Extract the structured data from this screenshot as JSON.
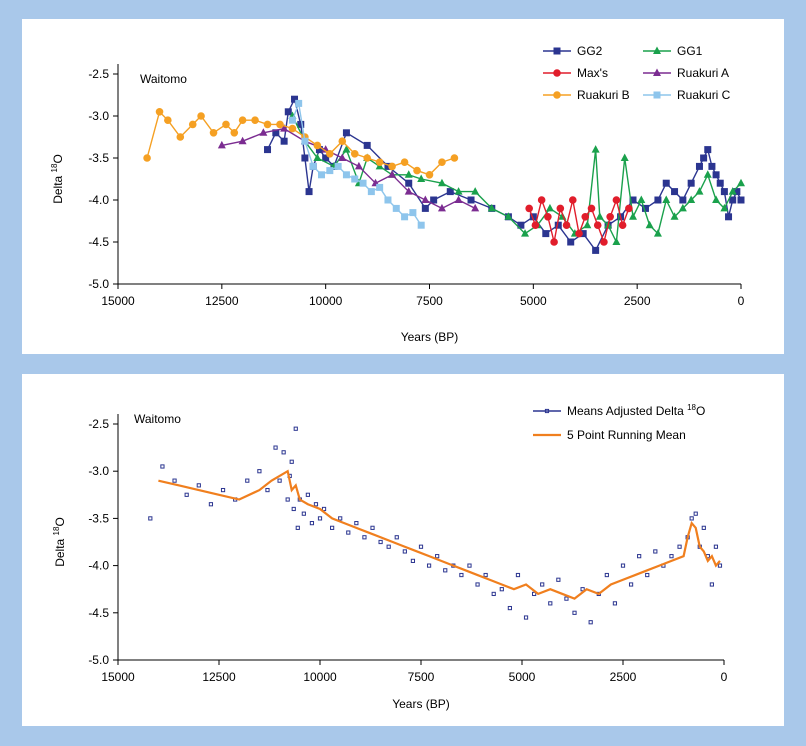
{
  "chart_data": [
    {
      "type": "line",
      "site_label": "Waitomo",
      "xlabel": "Years (BP)",
      "ylabel_main": "Delta ",
      "ylabel_sup": "18",
      "ylabel_tail": "O",
      "xlim": [
        15000,
        0
      ],
      "ylim": [
        -5.0,
        -2.5
      ],
      "xticks": [
        15000,
        12500,
        10000,
        7500,
        5000,
        2500,
        0
      ],
      "xtick_labels": [
        "15000",
        "12500",
        "10000",
        "7500",
        "5000",
        "2500",
        "0"
      ],
      "yticks": [
        -2.5,
        -3.0,
        -3.5,
        -4.0,
        -4.5,
        -5.0
      ],
      "ytick_labels": [
        "-2.5",
        "-3.0",
        "-3.5",
        "-4.0",
        "-4.5",
        "-5.0"
      ],
      "grid": false,
      "legend_position": "top-right",
      "series": [
        {
          "name": "GG2",
          "color": "#2b3590",
          "marker": "square",
          "x": [
            11400,
            11200,
            11000,
            10900,
            10750,
            10600,
            10500,
            10400,
            10300,
            10150,
            10000,
            9800,
            9500,
            9000,
            8500,
            8000,
            7600,
            7400,
            7000,
            6500,
            6000,
            5600,
            5300,
            5000,
            4700,
            4400,
            4100,
            3800,
            3500,
            3200,
            2900,
            2600,
            2300,
            2000,
            1800,
            1600,
            1400,
            1200,
            1000,
            900,
            800,
            700,
            600,
            500,
            400,
            300,
            200,
            100,
            0
          ],
          "y": [
            -3.4,
            -3.2,
            -3.3,
            -2.95,
            -2.8,
            -3.1,
            -3.5,
            -3.9,
            -3.6,
            -3.4,
            -3.5,
            -3.6,
            -3.2,
            -3.35,
            -3.6,
            -3.8,
            -4.1,
            -4.0,
            -3.9,
            -4.0,
            -4.1,
            -4.2,
            -4.3,
            -4.2,
            -4.4,
            -4.3,
            -4.5,
            -4.4,
            -4.6,
            -4.3,
            -4.2,
            -4.0,
            -4.1,
            -4.0,
            -3.8,
            -3.9,
            -4.0,
            -3.8,
            -3.6,
            -3.5,
            -3.4,
            -3.6,
            -3.7,
            -3.8,
            -3.9,
            -4.2,
            -4.0,
            -3.9,
            -4.0
          ]
        },
        {
          "name": "GG1",
          "color": "#1aa14c",
          "marker": "triangle",
          "x": [
            10800,
            10500,
            10200,
            9800,
            9500,
            9200,
            9000,
            8700,
            8400,
            8000,
            7700,
            7200,
            6800,
            6400,
            6000,
            5600,
            5200,
            4900,
            4600,
            4300,
            4000,
            3700,
            3500,
            3400,
            3200,
            3000,
            2800,
            2600,
            2400,
            2200,
            2000,
            1800,
            1600,
            1400,
            1200,
            1000,
            800,
            600,
            400,
            200,
            0
          ],
          "y": [
            -3.0,
            -3.3,
            -3.5,
            -3.6,
            -3.4,
            -3.8,
            -3.5,
            -3.6,
            -3.7,
            -3.7,
            -3.75,
            -3.8,
            -3.9,
            -3.9,
            -4.1,
            -4.2,
            -4.4,
            -4.3,
            -4.1,
            -4.2,
            -4.4,
            -4.3,
            -3.4,
            -4.2,
            -4.3,
            -4.5,
            -3.5,
            -4.2,
            -4.0,
            -4.3,
            -4.4,
            -4.0,
            -4.2,
            -4.1,
            -4.0,
            -3.9,
            -3.7,
            -4.0,
            -4.1,
            -3.9,
            -3.8
          ]
        },
        {
          "name": "Max's",
          "color": "#e11d2b",
          "marker": "circle",
          "x": [
            5100,
            4950,
            4800,
            4650,
            4500,
            4350,
            4200,
            4050,
            3900,
            3750,
            3600,
            3450,
            3300,
            3150,
            3000,
            2850,
            2700
          ],
          "y": [
            -4.1,
            -4.3,
            -4.0,
            -4.2,
            -4.5,
            -4.1,
            -4.3,
            -4.0,
            -4.4,
            -4.2,
            -4.1,
            -4.3,
            -4.5,
            -4.2,
            -4.0,
            -4.3,
            -4.1
          ]
        },
        {
          "name": "Ruakuri A",
          "color": "#7b2c91",
          "marker": "triangle",
          "x": [
            12500,
            12000,
            11500,
            11000,
            10500,
            10000,
            9600,
            9200,
            8800,
            8400,
            8000,
            7600,
            7200,
            6800,
            6400
          ],
          "y": [
            -3.35,
            -3.3,
            -3.2,
            -3.15,
            -3.3,
            -3.4,
            -3.5,
            -3.6,
            -3.8,
            -3.7,
            -3.9,
            -4.0,
            -4.1,
            -4.0,
            -4.1
          ]
        },
        {
          "name": "Ruakuri B",
          "color": "#f5a023",
          "marker": "circle",
          "x": [
            14300,
            14000,
            13800,
            13500,
            13200,
            13000,
            12700,
            12400,
            12200,
            12000,
            11700,
            11400,
            11100,
            10800,
            10500,
            10200,
            9900,
            9600,
            9300,
            9000,
            8700,
            8400,
            8100,
            7800,
            7500,
            7200,
            6900
          ],
          "y": [
            -3.5,
            -2.95,
            -3.05,
            -3.25,
            -3.1,
            -3.0,
            -3.2,
            -3.1,
            -3.2,
            -3.05,
            -3.05,
            -3.1,
            -3.1,
            -3.15,
            -3.25,
            -3.35,
            -3.45,
            -3.3,
            -3.45,
            -3.5,
            -3.55,
            -3.6,
            -3.55,
            -3.65,
            -3.7,
            -3.55,
            -3.5
          ]
        },
        {
          "name": "Ruakuri C",
          "color": "#8ec5ec",
          "marker": "square",
          "x": [
            10800,
            10650,
            10500,
            10300,
            10100,
            9900,
            9700,
            9500,
            9300,
            9100,
            8900,
            8700,
            8500,
            8300,
            8100,
            7900,
            7700
          ],
          "y": [
            -3.05,
            -2.85,
            -3.3,
            -3.6,
            -3.7,
            -3.65,
            -3.6,
            -3.7,
            -3.75,
            -3.8,
            -3.9,
            -3.85,
            -4.0,
            -4.1,
            -4.2,
            -4.15,
            -4.3
          ]
        }
      ]
    },
    {
      "type": "scatter",
      "site_label": "Waitomo",
      "xlabel": "Years (BP)",
      "ylabel_main": "Delta ",
      "ylabel_sup": "18",
      "ylabel_tail": "O",
      "xlim": [
        15000,
        0
      ],
      "ylim": [
        -5.0,
        -2.5
      ],
      "xticks": [
        15000,
        12500,
        10000,
        7500,
        5000,
        2500,
        0
      ],
      "xtick_labels": [
        "15000",
        "12500",
        "10000",
        "7500",
        "5000",
        "2500",
        "0"
      ],
      "yticks": [
        -2.5,
        -3.0,
        -3.5,
        -4.0,
        -4.5,
        -5.0
      ],
      "ytick_labels": [
        "-2.5",
        "-3.0",
        "-3.5",
        "-4.0",
        "-4.5",
        "-5.0"
      ],
      "grid": false,
      "legend_position": "top-right",
      "series": [
        {
          "name": "Means Adjusted Delta ",
          "name_sup": "18",
          "name_tail": "O",
          "color": "#2b3590",
          "marker": "square-small",
          "x": [
            14200,
            13900,
            13600,
            13300,
            13000,
            12700,
            12400,
            12100,
            11800,
            11500,
            11300,
            11100,
            11000,
            10900,
            10800,
            10750,
            10700,
            10650,
            10600,
            10550,
            10500,
            10400,
            10300,
            10200,
            10100,
            10000,
            9900,
            9700,
            9500,
            9300,
            9100,
            8900,
            8700,
            8500,
            8300,
            8100,
            7900,
            7700,
            7500,
            7300,
            7100,
            6900,
            6700,
            6500,
            6300,
            6100,
            5900,
            5700,
            5500,
            5300,
            5100,
            4900,
            4700,
            4500,
            4300,
            4100,
            3900,
            3700,
            3500,
            3300,
            3100,
            2900,
            2700,
            2500,
            2300,
            2100,
            1900,
            1700,
            1500,
            1300,
            1100,
            900,
            800,
            700,
            600,
            500,
            400,
            300,
            200,
            100
          ],
          "y": [
            -3.5,
            -2.95,
            -3.1,
            -3.25,
            -3.15,
            -3.35,
            -3.2,
            -3.3,
            -3.1,
            -3.0,
            -3.2,
            -2.75,
            -3.1,
            -2.8,
            -3.3,
            -3.05,
            -2.9,
            -3.4,
            -2.55,
            -3.6,
            -3.3,
            -3.45,
            -3.25,
            -3.55,
            -3.35,
            -3.5,
            -3.4,
            -3.6,
            -3.5,
            -3.65,
            -3.55,
            -3.7,
            -3.6,
            -3.75,
            -3.8,
            -3.7,
            -3.85,
            -3.95,
            -3.8,
            -4.0,
            -3.9,
            -4.05,
            -4.0,
            -4.1,
            -4.0,
            -4.2,
            -4.1,
            -4.3,
            -4.25,
            -4.45,
            -4.1,
            -4.55,
            -4.3,
            -4.2,
            -4.4,
            -4.15,
            -4.35,
            -4.5,
            -4.25,
            -4.6,
            -4.3,
            -4.1,
            -4.4,
            -4.0,
            -4.2,
            -3.9,
            -4.1,
            -3.85,
            -4.0,
            -3.9,
            -3.8,
            -3.7,
            -3.5,
            -3.45,
            -3.8,
            -3.6,
            -3.9,
            -4.2,
            -3.8,
            -4.0
          ]
        },
        {
          "name": "5 Point Running Mean",
          "color": "#f07f1e",
          "marker": "none",
          "x": [
            14000,
            13500,
            13000,
            12500,
            12000,
            11500,
            11200,
            11000,
            10800,
            10700,
            10600,
            10500,
            10300,
            10000,
            9700,
            9400,
            9100,
            8800,
            8500,
            8200,
            7900,
            7600,
            7300,
            7000,
            6700,
            6400,
            6100,
            5800,
            5500,
            5200,
            4900,
            4600,
            4300,
            4000,
            3700,
            3400,
            3100,
            2800,
            2500,
            2200,
            1900,
            1600,
            1300,
            1000,
            900,
            800,
            700,
            600,
            500,
            400,
            300,
            200,
            100
          ],
          "y": [
            -3.1,
            -3.15,
            -3.2,
            -3.25,
            -3.3,
            -3.2,
            -3.1,
            -3.05,
            -3.0,
            -3.2,
            -3.15,
            -3.3,
            -3.35,
            -3.4,
            -3.5,
            -3.55,
            -3.6,
            -3.65,
            -3.7,
            -3.75,
            -3.8,
            -3.85,
            -3.9,
            -3.95,
            -4.0,
            -4.05,
            -4.1,
            -4.15,
            -4.2,
            -4.25,
            -4.2,
            -4.3,
            -4.25,
            -4.3,
            -4.35,
            -4.25,
            -4.3,
            -4.2,
            -4.15,
            -4.1,
            -4.05,
            -4.0,
            -3.95,
            -3.9,
            -3.7,
            -3.55,
            -3.6,
            -3.8,
            -3.85,
            -3.95,
            -3.9,
            -4.0,
            -3.95
          ]
        }
      ]
    }
  ]
}
